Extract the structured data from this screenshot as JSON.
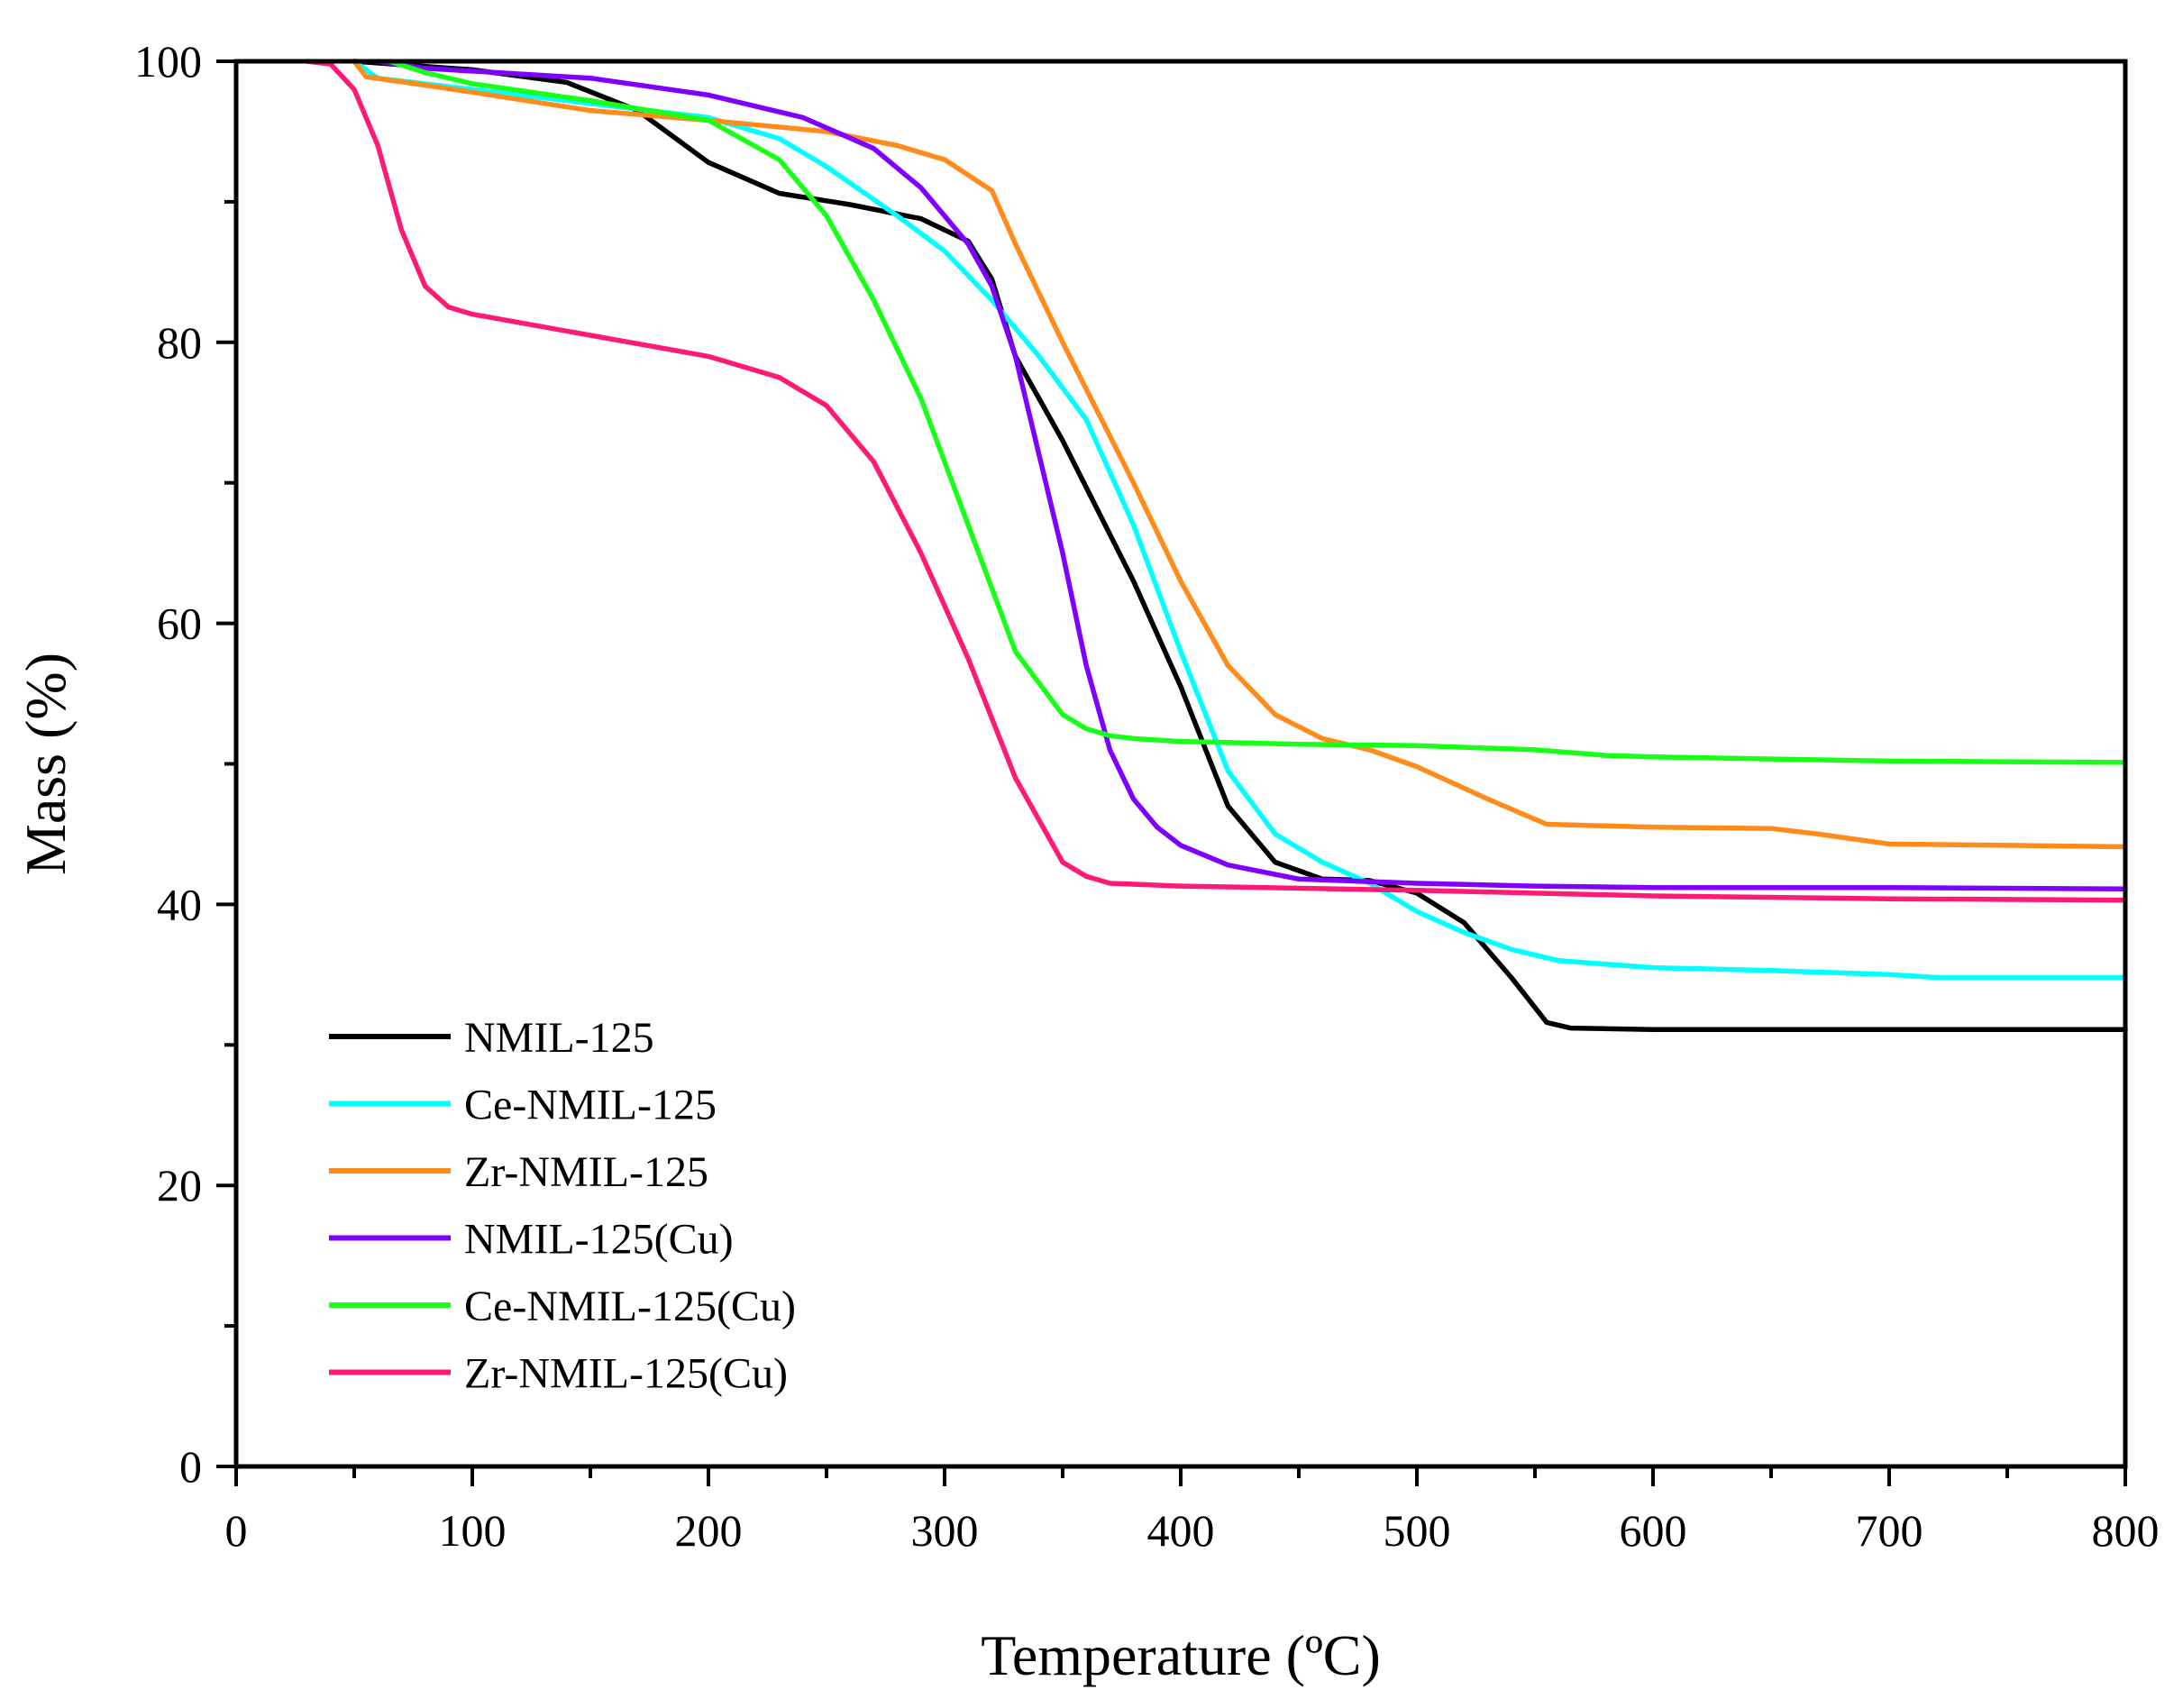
{
  "chart_data": {
    "type": "line",
    "title": "",
    "xlabel": "Temperature (ºC)",
    "ylabel": "Mass (%)",
    "xlim": [
      0,
      800
    ],
    "ylim": [
      0,
      100
    ],
    "x_ticks": [
      0,
      100,
      200,
      300,
      400,
      500,
      600,
      700,
      800
    ],
    "x_tick_labels": [
      "0",
      "100",
      "200",
      "300",
      "400",
      "500",
      "600",
      "700",
      "800"
    ],
    "y_ticks": [
      0,
      20,
      40,
      60,
      80,
      100
    ],
    "y_tick_labels": [
      "0",
      "20",
      "40",
      "60",
      "80",
      "100"
    ],
    "legend_position": "bottom-left",
    "grid": false,
    "series": [
      {
        "name": "NMIL-125",
        "color": "#000000",
        "x": [
          50,
          100,
          140,
          170,
          200,
          230,
          260,
          290,
          310,
          320,
          330,
          350,
          380,
          400,
          420,
          440,
          460,
          480,
          500,
          520,
          540,
          555,
          565,
          600,
          700,
          800
        ],
        "y": [
          100,
          99.4,
          98.5,
          96.5,
          92.8,
          90.6,
          89.8,
          88.8,
          87.2,
          84.5,
          79,
          73,
          63,
          55.5,
          47,
          43,
          41.8,
          41.7,
          40.8,
          38.7,
          34.8,
          31.6,
          31.2,
          31.1,
          31.1,
          31.1
        ]
      },
      {
        "name": "Ce-NMIL-125",
        "color": "#00FFFF",
        "x": [
          50,
          60,
          100,
          150,
          200,
          230,
          250,
          280,
          300,
          320,
          340,
          360,
          380,
          400,
          420,
          440,
          460,
          480,
          500,
          520,
          540,
          560,
          600,
          650,
          700,
          720,
          800
        ],
        "y": [
          100,
          98.8,
          98,
          97,
          96,
          94.5,
          92.5,
          89,
          86.5,
          83,
          79,
          74.5,
          67,
          58,
          49.5,
          45,
          43,
          41.5,
          39.5,
          38,
          36.8,
          36,
          35.5,
          35.3,
          35,
          34.8,
          34.8
        ]
      },
      {
        "name": "Zr-NMIL-125",
        "color": "#FF8C1A",
        "x": [
          50,
          55,
          80,
          100,
          150,
          200,
          250,
          280,
          300,
          320,
          330,
          350,
          380,
          400,
          420,
          440,
          460,
          480,
          500,
          530,
          555,
          600,
          650,
          670,
          700,
          750,
          800
        ],
        "y": [
          100,
          98.9,
          98.3,
          97.8,
          96.5,
          95.8,
          95,
          94,
          93,
          90.8,
          87,
          80,
          70,
          63,
          57,
          53.5,
          51.8,
          51,
          49.8,
          47.5,
          45.7,
          45.5,
          45.4,
          45,
          44.3,
          44.2,
          44.1
        ]
      },
      {
        "name": "NMIL-125(Cu)",
        "color": "#8000FF",
        "x": [
          60,
          80,
          100,
          150,
          200,
          240,
          270,
          290,
          310,
          320,
          330,
          340,
          350,
          360,
          370,
          380,
          390,
          400,
          420,
          450,
          500,
          550,
          600,
          700,
          800
        ],
        "y": [
          100,
          99.5,
          99.3,
          98.8,
          97.6,
          96,
          93.8,
          91,
          87,
          84,
          79,
          72,
          65,
          57,
          51,
          47.5,
          45.5,
          44.2,
          42.8,
          41.8,
          41.5,
          41.3,
          41.2,
          41.2,
          41.1
        ]
      },
      {
        "name": "Ce-NMIL-125(Cu)",
        "color": "#1AFF1A",
        "x": [
          65,
          80,
          100,
          150,
          200,
          230,
          250,
          270,
          290,
          310,
          330,
          350,
          360,
          370,
          380,
          400,
          450,
          500,
          550,
          580,
          600,
          700,
          800
        ],
        "y": [
          100,
          99.2,
          98.4,
          97.2,
          95.8,
          93,
          89,
          83,
          76,
          67,
          58,
          53.5,
          52.5,
          52,
          51.8,
          51.6,
          51.4,
          51.3,
          51,
          50.6,
          50.5,
          50.2,
          50.1
        ]
      },
      {
        "name": "Zr-NMIL-125(Cu)",
        "color": "#FF1A75",
        "x": [
          30,
          40,
          50,
          60,
          70,
          80,
          90,
          100,
          150,
          200,
          230,
          250,
          270,
          290,
          310,
          330,
          350,
          360,
          370,
          400,
          500,
          600,
          700,
          800
        ],
        "y": [
          100,
          99.8,
          98,
          94,
          88,
          84,
          82.5,
          82,
          80.5,
          79,
          77.5,
          75.5,
          71.5,
          65,
          57.5,
          49,
          43,
          42,
          41.5,
          41.3,
          41,
          40.6,
          40.4,
          40.3
        ]
      }
    ]
  }
}
